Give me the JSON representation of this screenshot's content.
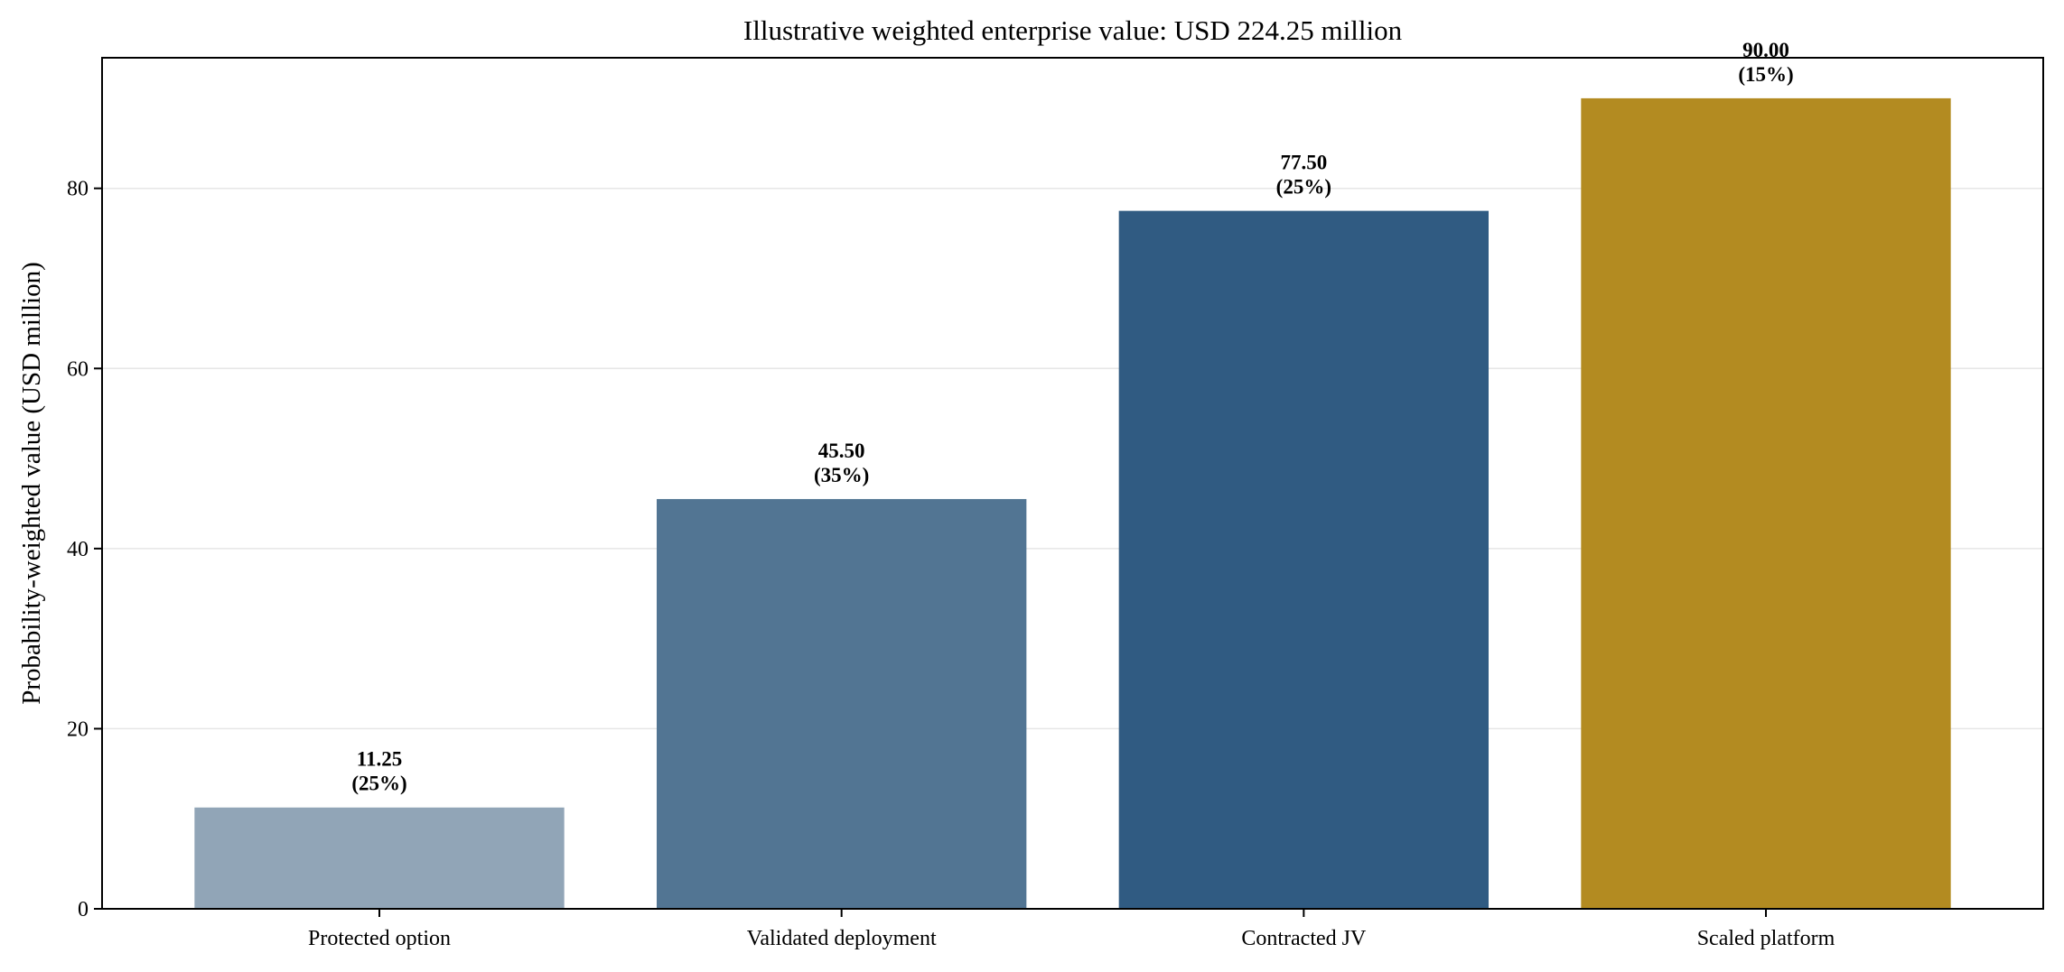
{
  "chart_data": {
    "type": "bar",
    "title": "Illustrative weighted enterprise value: USD 224.25 million",
    "xlabel": "",
    "ylabel": "Probability-weighted value (USD million)",
    "categories": [
      "Protected option",
      "Validated deployment",
      "Contracted JV",
      "Scaled platform"
    ],
    "values": [
      11.25,
      45.5,
      77.5,
      90.0
    ],
    "value_labels": [
      "11.25",
      "45.50",
      "77.50",
      "90.00"
    ],
    "probability_labels": [
      "(25%)",
      "(35%)",
      "(25%)",
      "(15%)"
    ],
    "colors": [
      "#91a5b7",
      "#527593",
      "#305b82",
      "#b38b21"
    ],
    "ylim": [
      0,
      94.5
    ],
    "yticks": [
      0,
      20,
      40,
      60,
      80
    ],
    "ytick_labels": [
      "0",
      "20",
      "40",
      "60",
      "80"
    ],
    "grid": "y",
    "legend": "none"
  }
}
